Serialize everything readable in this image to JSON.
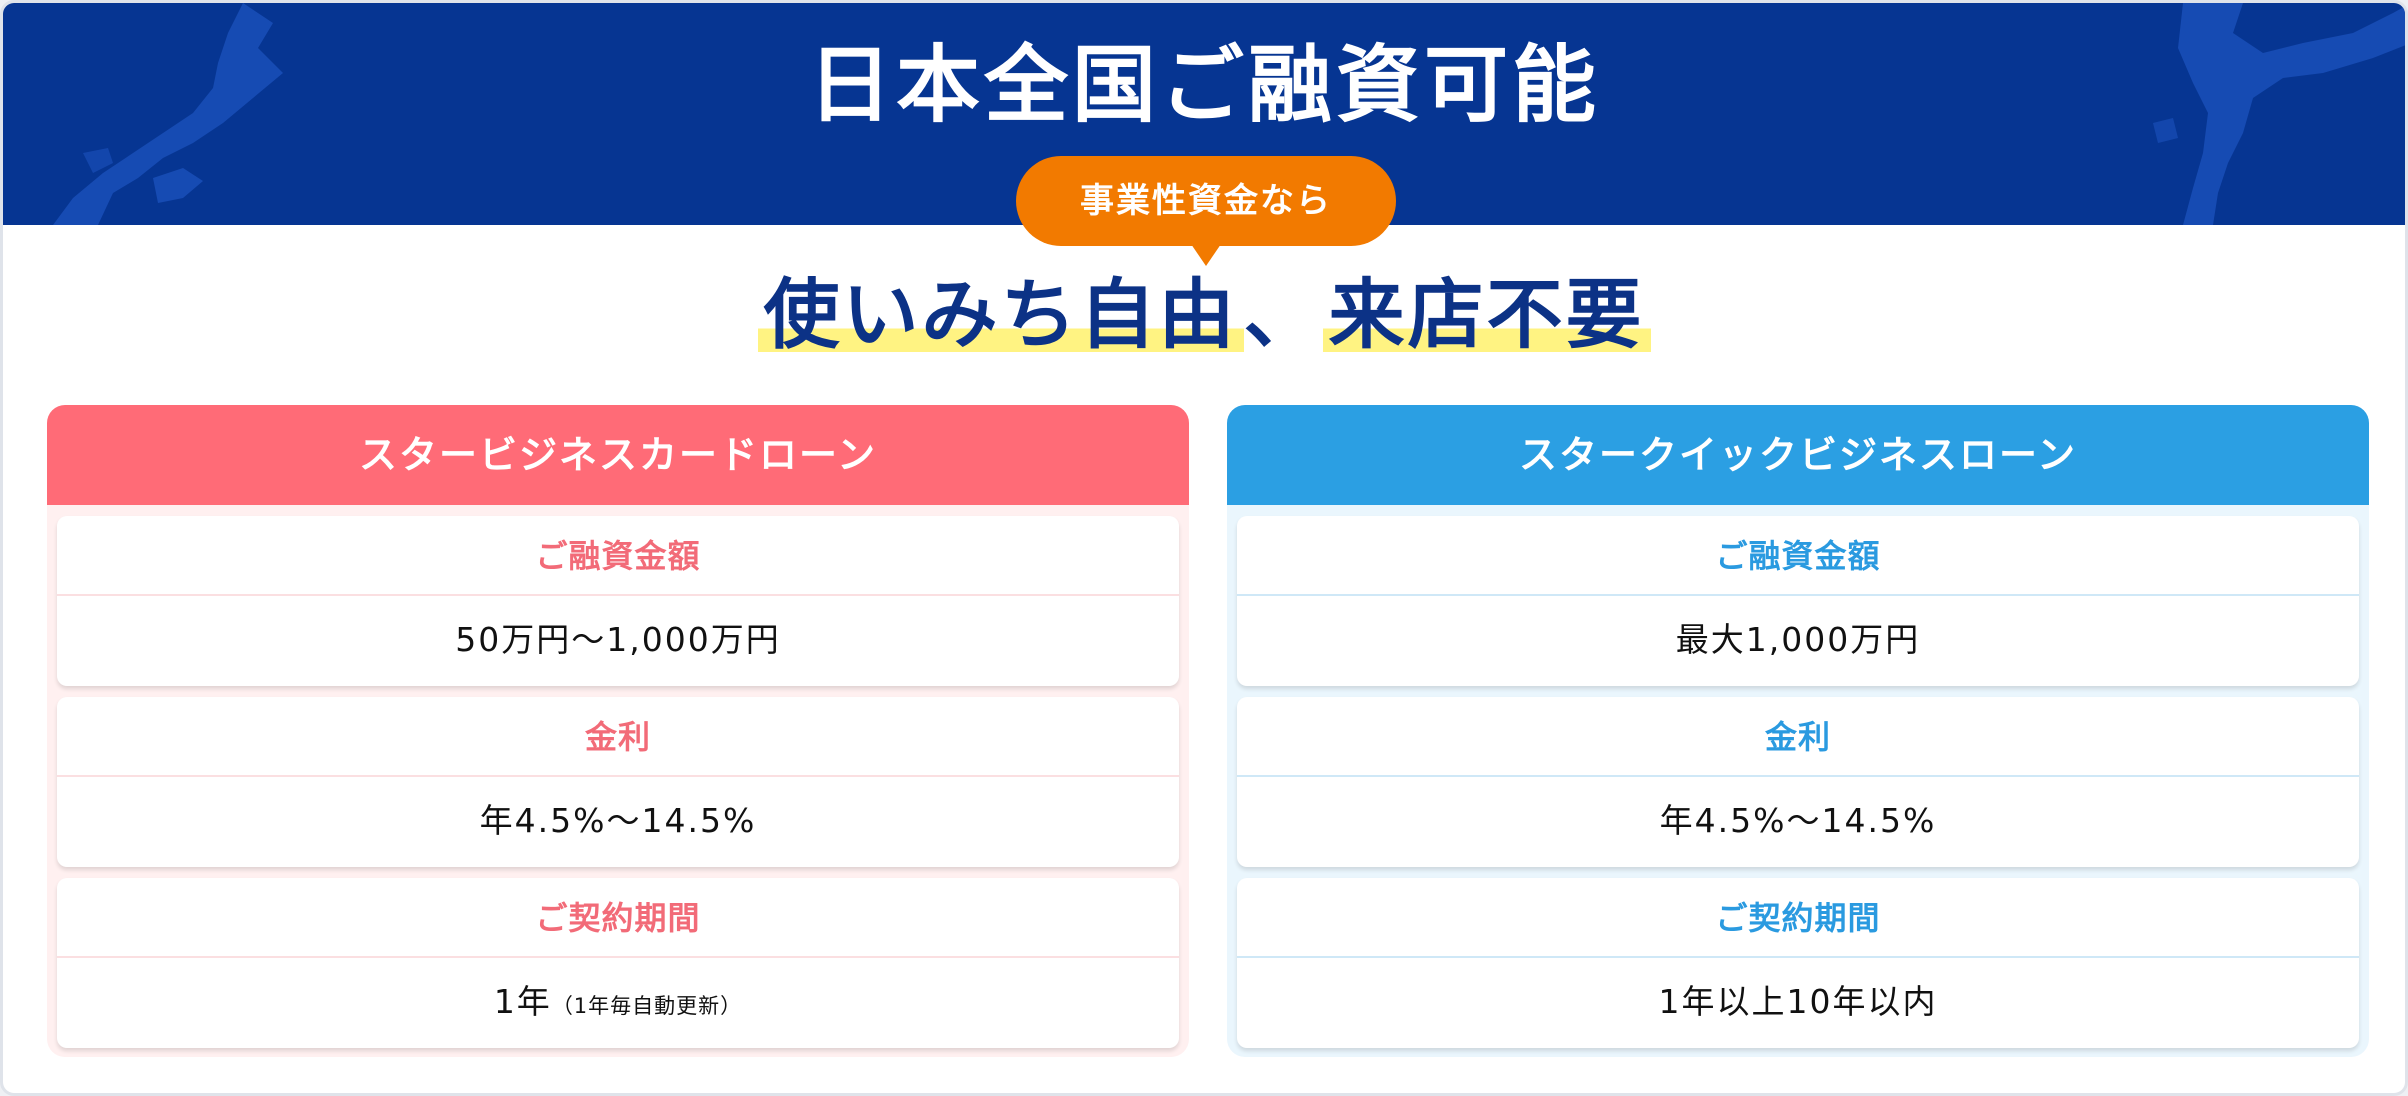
{
  "hero": {
    "title": "日本全国ご融資可能",
    "bubble": "事業性資金なら",
    "catch_part1": "使いみち自由",
    "catch_sep": "、",
    "catch_part2": "来店不要"
  },
  "cards": [
    {
      "title": "スタービジネスカードローン",
      "accent": "#ff6b77",
      "rows": [
        {
          "label": "ご融資金額",
          "value": "50万円～1,000万円"
        },
        {
          "label": "金利",
          "value": "年4.5%～14.5%"
        },
        {
          "label": "ご契約期間",
          "value": "1年",
          "note": "（1年毎自動更新）"
        }
      ]
    },
    {
      "title": "スタークイックビジネスローン",
      "accent": "#2b9fe3",
      "rows": [
        {
          "label": "ご融資金額",
          "value": "最大1,000万円"
        },
        {
          "label": "金利",
          "value": "年4.5%～14.5%"
        },
        {
          "label": "ご契約期間",
          "value": "1年以上10年以内"
        }
      ]
    }
  ],
  "colors": {
    "hero_bg": "#063592",
    "bubble": "#f27a00",
    "highlight": "#fff382",
    "catch_text": "#0c3286"
  }
}
